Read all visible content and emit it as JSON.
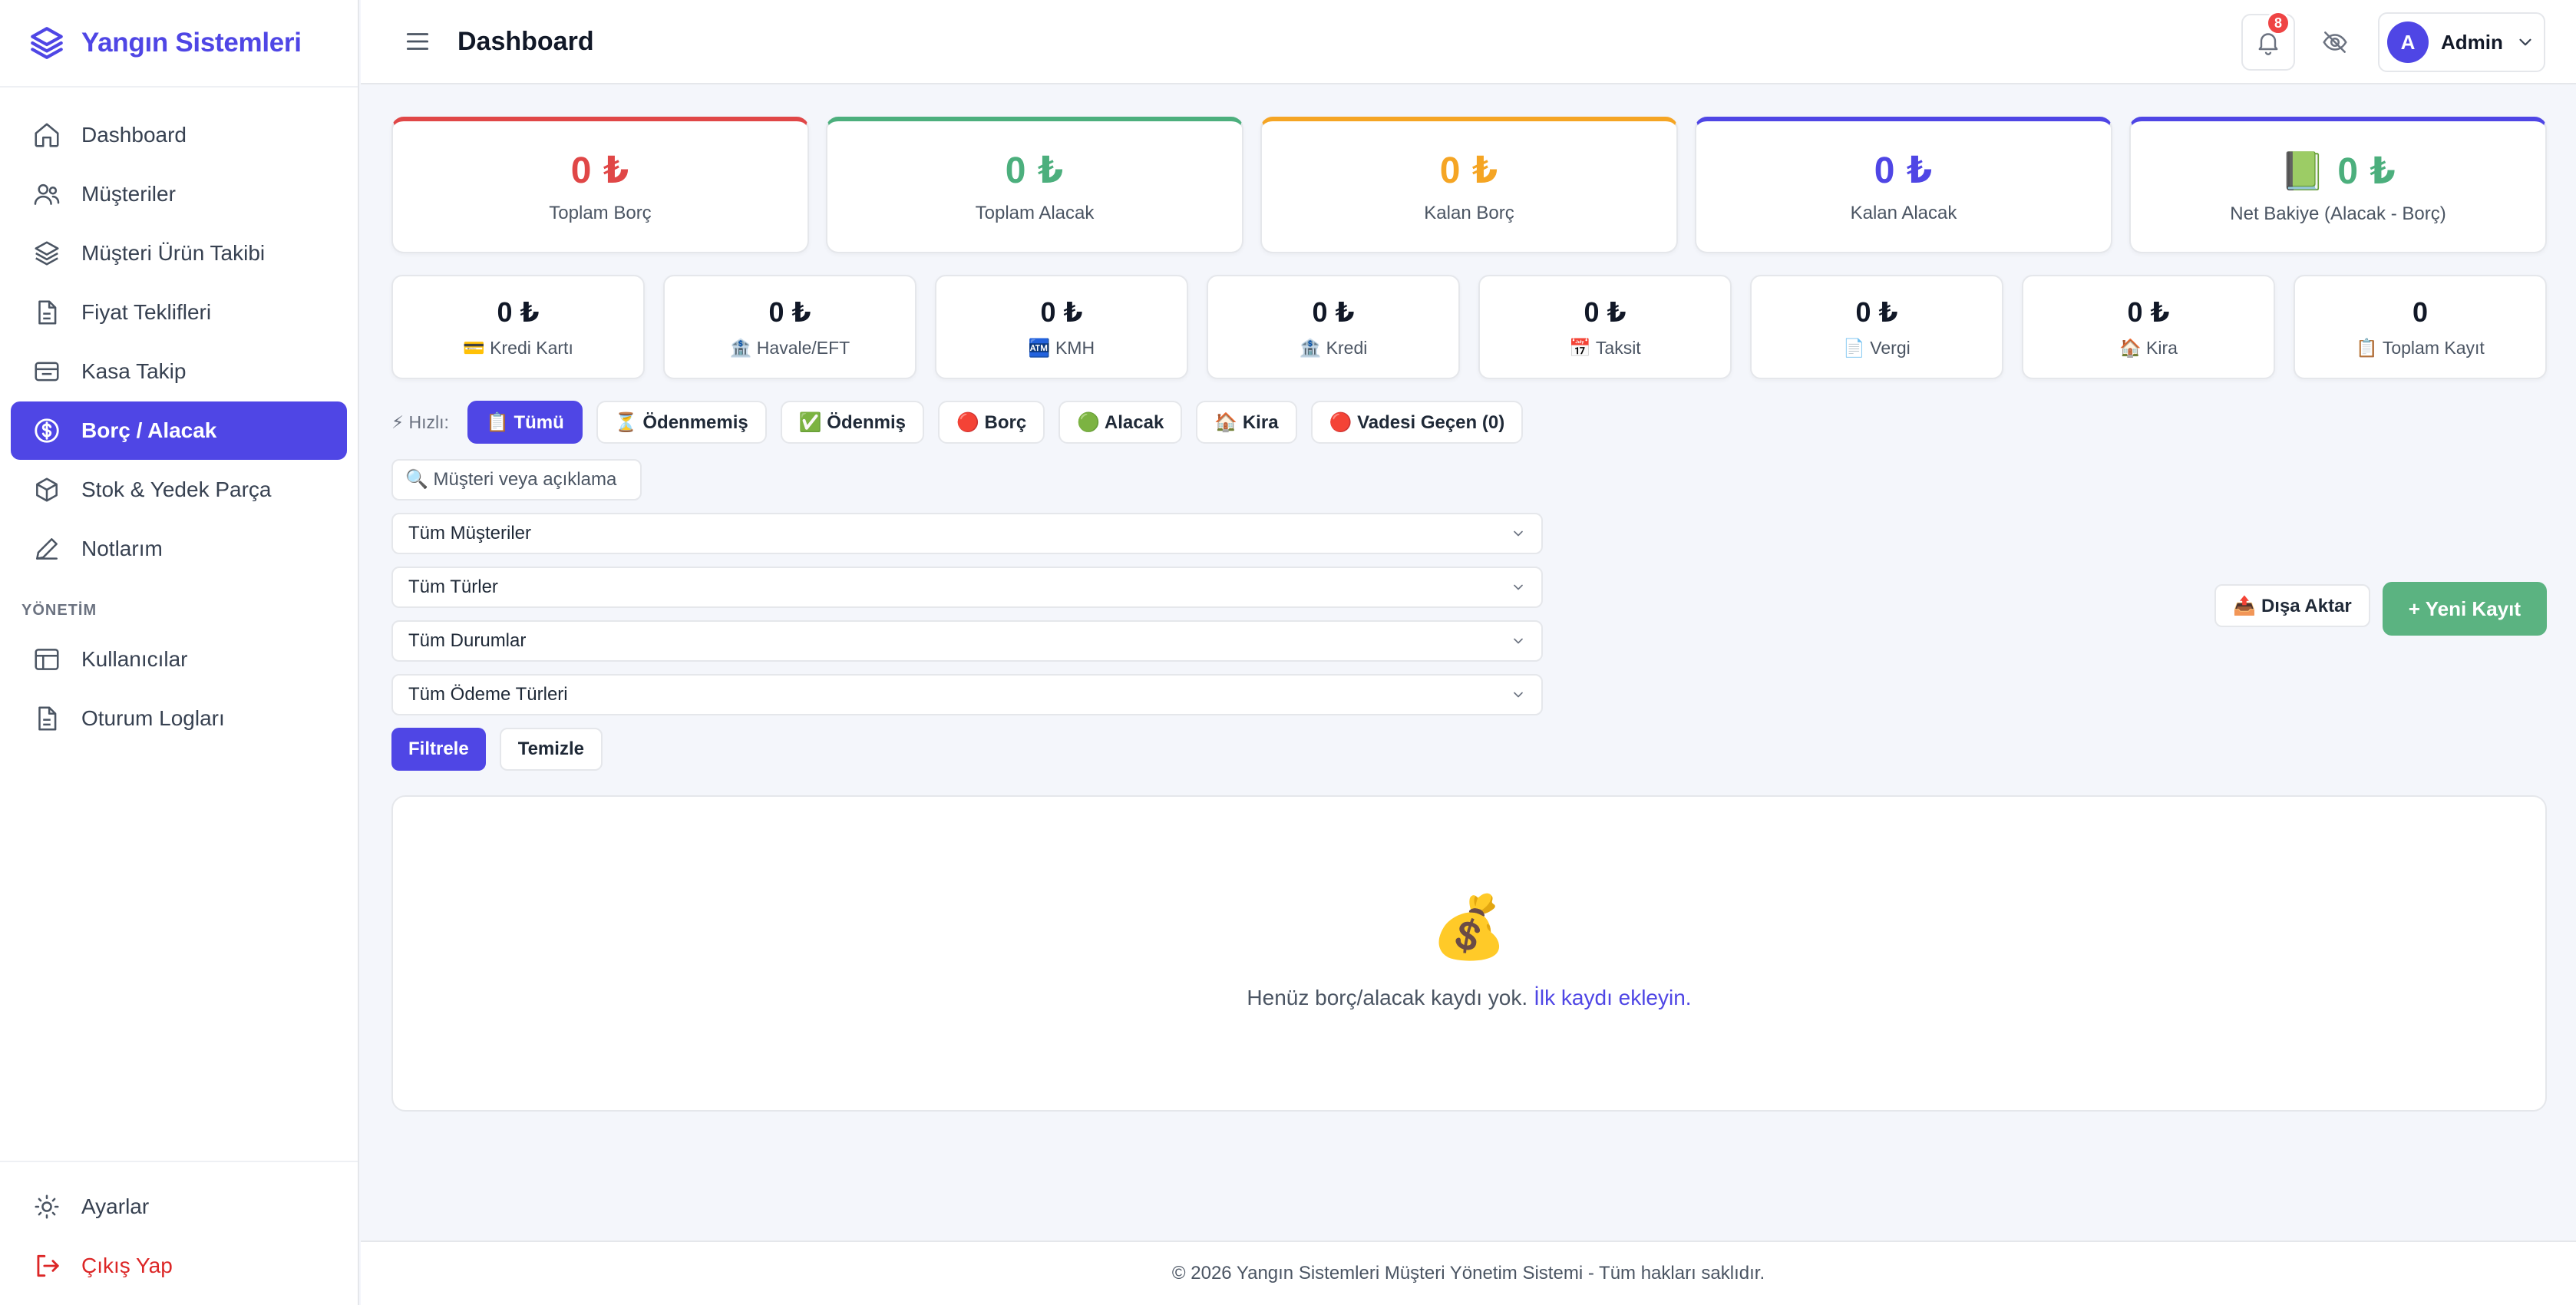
{
  "brand": {
    "name": "Yangın Sistemleri",
    "logo_icon": "layers-icon",
    "color": "#4f46e5"
  },
  "sidebar": {
    "items": [
      {
        "label": "Dashboard",
        "icon": "home-icon"
      },
      {
        "label": "Müşteriler",
        "icon": "users-icon"
      },
      {
        "label": "Müşteri Ürün Takibi",
        "icon": "layers-icon"
      },
      {
        "label": "Fiyat Teklifleri",
        "icon": "file-icon"
      },
      {
        "label": "Kasa Takip",
        "icon": "cashbox-icon"
      },
      {
        "label": "Borç / Alacak",
        "icon": "dollar-circle-icon",
        "active": true
      },
      {
        "label": "Stok & Yedek Parça",
        "icon": "box-icon"
      },
      {
        "label": "Notlarım",
        "icon": "pen-icon"
      }
    ],
    "section_title": "YÖNETİM",
    "admin_items": [
      {
        "label": "Kullanıcılar",
        "icon": "table-icon"
      },
      {
        "label": "Oturum Logları",
        "icon": "document-icon"
      }
    ],
    "bottom_items": [
      {
        "label": "Ayarlar",
        "icon": "sun-gear-icon"
      },
      {
        "label": "Çıkış Yap",
        "icon": "logout-icon"
      }
    ]
  },
  "header": {
    "title": "Dashboard",
    "notification_count": "8",
    "user_initial": "A",
    "user_name": "Admin"
  },
  "stats": [
    {
      "value": "0 ₺",
      "label": "Toplam Borç",
      "color": "#e04747"
    },
    {
      "value": "0 ₺",
      "label": "Toplam Alacak",
      "color": "#4caf7d"
    },
    {
      "value": "0 ₺",
      "label": "Kalan Borç",
      "color": "#f5a524"
    },
    {
      "value": "0 ₺",
      "label": "Kalan Alacak",
      "color": "#4f46e5"
    },
    {
      "value": "📗 0 ₺",
      "label": "Net Bakiye (Alacak - Borç)",
      "color": "#4caf7d"
    }
  ],
  "mini_stats": [
    {
      "value": "0 ₺",
      "label": "💳 Kredi Kartı"
    },
    {
      "value": "0 ₺",
      "label": "🏦 Havale/EFT"
    },
    {
      "value": "0 ₺",
      "label": "🏧 KMH"
    },
    {
      "value": "0 ₺",
      "label": "🏦 Kredi"
    },
    {
      "value": "0 ₺",
      "label": "📅 Taksit"
    },
    {
      "value": "0 ₺",
      "label": "📄 Vergi"
    },
    {
      "value": "0 ₺",
      "label": "🏠 Kira"
    },
    {
      "value": "0",
      "label": "📋 Toplam Kayıt"
    }
  ],
  "quick": {
    "label": "⚡ Hızlı:",
    "chips": [
      {
        "label": "📋 Tümü",
        "active": true
      },
      {
        "label": "⏳ Ödenmemiş"
      },
      {
        "label": "✅ Ödenmiş"
      },
      {
        "label": "🔴 Borç"
      },
      {
        "label": "🟢 Alacak"
      },
      {
        "label": "🏠 Kira"
      },
      {
        "label": "🔴 Vadesi Geçen (0)"
      }
    ]
  },
  "filters": {
    "search_placeholder": "🔍 Müşteri veya açıklama",
    "customer": "Tüm Müşteriler",
    "type": "Tüm Türler",
    "status": "Tüm Durumlar",
    "payment_type": "Tüm Ödeme Türleri",
    "filter_button": "Filtrele",
    "clear_button": "Temizle"
  },
  "actions": {
    "export": "📤 Dışa Aktar",
    "new_record": "+ Yeni Kayıt"
  },
  "empty": {
    "icon": "💰",
    "text": "Henüz borç/alacak kaydı yok.",
    "link": "İlk kaydı ekleyin."
  },
  "footer": {
    "text": "© 2026 Yangın Sistemleri Müşteri Yönetim Sistemi - Tüm hakları saklıdır."
  }
}
